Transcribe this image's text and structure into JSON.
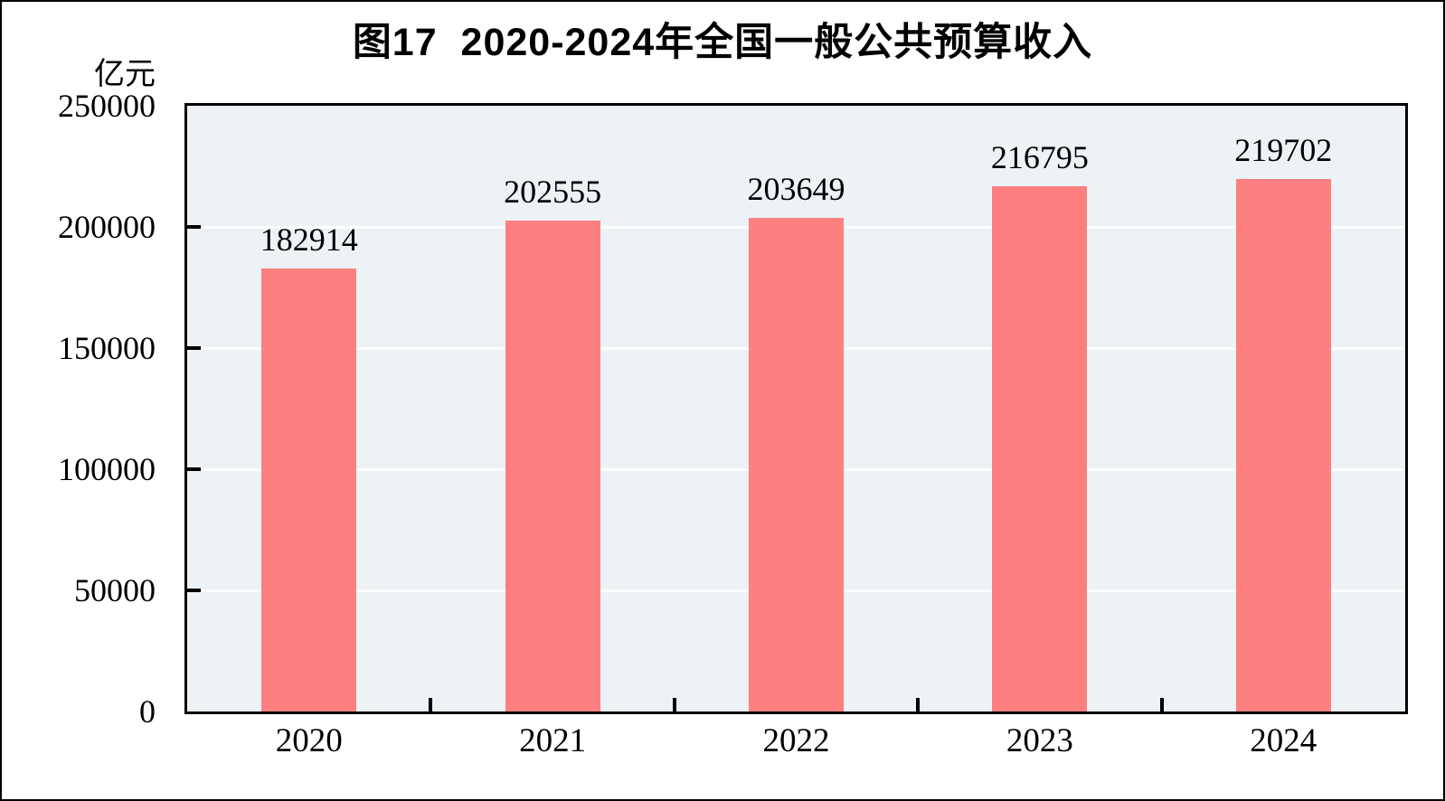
{
  "figure": {
    "title": "图17  2020-2024年全国一般公共预算收入",
    "unit_label": "亿元"
  },
  "chart_data": {
    "type": "bar",
    "title": "图17  2020-2024年全国一般公共预算收入",
    "xlabel": "",
    "ylabel": "亿元",
    "categories": [
      "2020",
      "2021",
      "2022",
      "2023",
      "2024"
    ],
    "values": [
      182914,
      202555,
      203649,
      216795,
      219702
    ],
    "value_labels": [
      "182914",
      "202555",
      "203649",
      "216795",
      "219702"
    ],
    "ylim": [
      0,
      250000
    ],
    "yticks": [
      0,
      50000,
      100000,
      150000,
      200000,
      250000
    ],
    "ytick_labels": [
      "0",
      "50000",
      "100000",
      "150000",
      "200000",
      "250000"
    ],
    "grid": true,
    "legend": "none",
    "bar_color": "#fd7f7f",
    "plot_bg_color": "#ecf2f5",
    "gridline_color": "#ffffff",
    "axis_color": "#000000"
  }
}
